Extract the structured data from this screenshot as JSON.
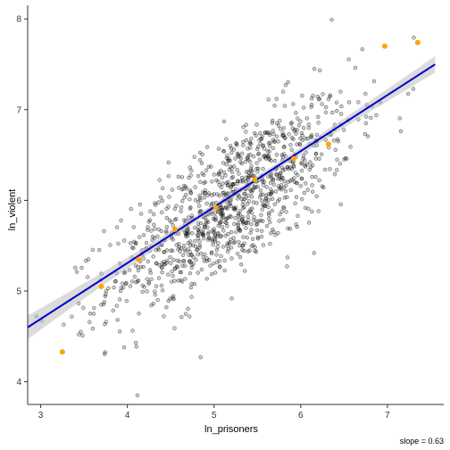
{
  "chart_data": {
    "type": "scatter",
    "xlabel": "ln_prisoners",
    "ylabel": "ln_violent",
    "caption": "slope = 0.63",
    "xlim": [
      2.85,
      7.65
    ],
    "ylim": [
      3.75,
      8.15
    ],
    "x_ticks": [
      3,
      4,
      5,
      6,
      7
    ],
    "y_ticks": [
      4,
      5,
      6,
      7,
      8
    ],
    "grid": false,
    "colors": {
      "points": "#000000",
      "binned_means": "#FFA500",
      "fit_line": "#0000CC",
      "confidence_band": "#BEBEBE",
      "axis": "#333333"
    },
    "fit_line": {
      "slope": 0.63,
      "x_range": [
        2.85,
        7.55
      ],
      "y_range": [
        4.6,
        7.5
      ],
      "band_halfwidth": [
        0.13,
        0.035,
        0.09
      ]
    },
    "binned_means": {
      "x": [
        3.25,
        3.7,
        4.13,
        4.55,
        5.02,
        5.47,
        5.92,
        6.32,
        6.97,
        7.35
      ],
      "y": [
        4.33,
        5.05,
        5.35,
        5.68,
        5.92,
        6.23,
        6.46,
        6.62,
        7.7,
        7.74
      ]
    },
    "scatter": {
      "n_points": 1100,
      "center": [
        5.2,
        5.96
      ],
      "x_sd": 0.7,
      "y_resid_sd": 0.38
    }
  }
}
